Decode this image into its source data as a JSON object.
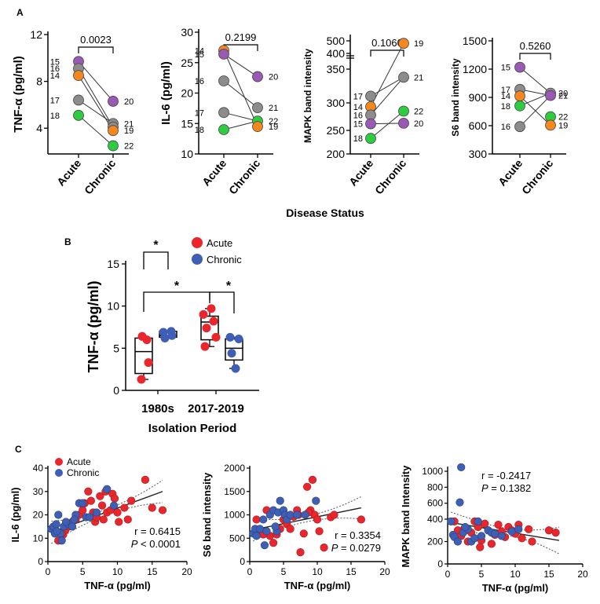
{
  "panel_labels": [
    "A",
    "B",
    "C"
  ],
  "shared_labels": {
    "disease_status": "Disease Status",
    "isolation_period": "Isolation Period"
  },
  "chart_data": [
    {
      "panel": "A",
      "type": "scatter",
      "ylabel": "TNF-α (pg/ml)",
      "categories": [
        "Acute",
        "Chronic"
      ],
      "yticks": [
        4,
        8,
        12
      ],
      "ylim": [
        1.8,
        12
      ],
      "pvalue": "0.0023",
      "acute": [
        {
          "id": "15",
          "value": 9.7,
          "color": "#9b59b6"
        },
        {
          "id": "16",
          "value": 9.1,
          "color": "#8c8c8c"
        },
        {
          "id": "14",
          "value": 8.5,
          "color": "#f5871f"
        },
        {
          "id": "17",
          "value": 6.4,
          "color": "#8c8c8c"
        },
        {
          "id": "18",
          "value": 5.1,
          "color": "#2ecc40"
        }
      ],
      "chronic": [
        {
          "id": "20",
          "value": 6.3,
          "color": "#9b59b6"
        },
        {
          "id": "21",
          "value": 4.4,
          "color": "#8c8c8c"
        },
        {
          "id": "",
          "value": 4.1,
          "color": "#8c8c8c"
        },
        {
          "id": "19",
          "value": 3.8,
          "color": "#f5871f"
        },
        {
          "id": "22",
          "value": 2.5,
          "color": "#2ecc40"
        }
      ],
      "links": [
        [
          0,
          0
        ],
        [
          1,
          2
        ],
        [
          2,
          3
        ],
        [
          3,
          1
        ],
        [
          4,
          4
        ]
      ]
    },
    {
      "panel": "A",
      "type": "scatter",
      "ylabel": "IL-6 (pg/ml)",
      "categories": [
        "Acute",
        "Chronic"
      ],
      "yticks": [
        10,
        15,
        20,
        25,
        30
      ],
      "ylim": [
        10,
        30
      ],
      "pvalue": "0.2199",
      "acute": [
        {
          "id": "14",
          "value": 27.0,
          "color": "#f5871f"
        },
        {
          "id": "15",
          "value": 26.4,
          "color": "#9b59b6"
        },
        {
          "id": "16",
          "value": 22.0,
          "color": "#8c8c8c"
        },
        {
          "id": "17",
          "value": 16.8,
          "color": "#8c8c8c"
        },
        {
          "id": "18",
          "value": 14.0,
          "color": "#2ecc40"
        }
      ],
      "chronic": [
        {
          "id": "20",
          "value": 22.7,
          "color": "#9b59b6"
        },
        {
          "id": "21",
          "value": 17.6,
          "color": "#8c8c8c"
        },
        {
          "id": "22",
          "value": 15.4,
          "color": "#2ecc40"
        },
        {
          "id": "19",
          "value": 14.5,
          "color": "#f5871f"
        }
      ],
      "links": [
        [
          0,
          3
        ],
        [
          1,
          0
        ],
        [
          2,
          1
        ],
        [
          3,
          2
        ],
        [
          4,
          2
        ]
      ]
    },
    {
      "panel": "A",
      "type": "scatter",
      "ylabel": "MAPK band intensity",
      "categories": [
        "Acute",
        "Chronic"
      ],
      "ytick_labels": [
        "200",
        "250",
        "300",
        "350",
        "400",
        "500"
      ],
      "pvalue": "0.1060",
      "acute": [
        {
          "id": "17",
          "value": 310,
          "color": "#8c8c8c"
        },
        {
          "id": "14",
          "value": 293,
          "color": "#f5871f"
        },
        {
          "id": "16",
          "value": 278,
          "color": "#8c8c8c"
        },
        {
          "id": "15",
          "value": 262,
          "color": "#9b59b6"
        },
        {
          "id": "18",
          "value": 233,
          "color": "#2ecc40"
        }
      ],
      "chronic": [
        {
          "id": "19",
          "value": 480,
          "color": "#f5871f"
        },
        {
          "id": "21",
          "value": 338,
          "color": "#8c8c8c"
        },
        {
          "id": "22",
          "value": 285,
          "color": "#2ecc40"
        },
        {
          "id": "20",
          "value": 263,
          "color": "#9b59b6"
        }
      ],
      "links": [
        [
          0,
          1
        ],
        [
          1,
          0
        ],
        [
          2,
          1
        ],
        [
          3,
          3
        ],
        [
          4,
          2
        ]
      ]
    },
    {
      "panel": "A",
      "type": "scatter",
      "ylabel": "S6 band intensity",
      "categories": [
        "Acute",
        "Chronic"
      ],
      "yticks": [
        300,
        600,
        900,
        1200,
        1500
      ],
      "ylim": [
        300,
        1500
      ],
      "pvalue": "0.5260",
      "acute": [
        {
          "id": "15",
          "value": 1220,
          "color": "#9b59b6"
        },
        {
          "id": "17",
          "value": 985,
          "color": "#8c8c8c"
        },
        {
          "id": "14",
          "value": 915,
          "color": "#f5871f"
        },
        {
          "id": "18",
          "value": 810,
          "color": "#2ecc40"
        },
        {
          "id": "16",
          "value": 590,
          "color": "#8c8c8c"
        }
      ],
      "chronic": [
        {
          "id": "20",
          "value": 945,
          "color": "#8c8c8c"
        },
        {
          "id": "21",
          "value": 920,
          "color": "#9b59b6"
        },
        {
          "id": "22",
          "value": 695,
          "color": "#2ecc40"
        },
        {
          "id": "19",
          "value": 605,
          "color": "#f5871f"
        }
      ],
      "links": [
        [
          0,
          0
        ],
        [
          1,
          1
        ],
        [
          2,
          3
        ],
        [
          3,
          0
        ],
        [
          4,
          1
        ]
      ]
    },
    {
      "panel": "B",
      "type": "box",
      "ylabel": "TNF-α (pg/ml)",
      "xlabel": "Isolation Period",
      "categories": [
        "1980s",
        "2017-2019"
      ],
      "yticks": [
        0,
        5,
        10,
        15
      ],
      "ylim": [
        0,
        15
      ],
      "legend": [
        {
          "name": "Acute",
          "color": "#e8262c"
        },
        {
          "name": "Chronic",
          "color": "#3f5fb5"
        }
      ],
      "significance": "*",
      "boxes": [
        {
          "group": "1980s",
          "series": "Acute",
          "min": 1.3,
          "q1": 2.0,
          "median": 4.6,
          "q3": 6.2,
          "max": 6.4,
          "points": [
            1.3,
            3.3,
            6.0,
            6.4
          ]
        },
        {
          "group": "1980s",
          "series": "Chronic",
          "min": 6.2,
          "q1": 6.3,
          "median": 6.5,
          "q3": 7.0,
          "max": 7.0,
          "points": [
            6.2,
            6.5,
            6.9,
            7.0
          ]
        },
        {
          "group": "2017-2019",
          "series": "Acute",
          "min": 5.2,
          "q1": 6.0,
          "median": 8.1,
          "q3": 8.8,
          "max": 9.7,
          "points": [
            5.2,
            6.3,
            7.4,
            8.2,
            9.0,
            9.7
          ]
        },
        {
          "group": "2017-2019",
          "series": "Chronic",
          "min": 2.6,
          "q1": 3.6,
          "median": 5.0,
          "q3": 6.1,
          "max": 6.3,
          "points": [
            2.6,
            4.4,
            6.1,
            6.3
          ]
        }
      ]
    },
    {
      "panel": "C",
      "type": "scatter",
      "xlabel": "TNF-α (pg/ml)",
      "ylabel": "IL-6 (pg/ml)",
      "xticks": [
        0,
        5,
        10,
        15,
        20
      ],
      "xlim": [
        0,
        20
      ],
      "yticks": [
        0,
        10,
        20,
        30,
        40
      ],
      "ylim": [
        0,
        40
      ],
      "legend": [
        {
          "name": "Acute",
          "color": "#e8262c"
        },
        {
          "name": "Chronic",
          "color": "#3f5fb5"
        }
      ],
      "r_text": "r = 0.6415",
      "p_label": "P",
      "p_text": " < 0.0001",
      "fit": {
        "x": [
          0.5,
          16.5
        ],
        "y": [
          12.5,
          30.0
        ]
      },
      "acute": [
        [
          2.2,
          11.5
        ],
        [
          2.5,
          13.5
        ],
        [
          3,
          15
        ],
        [
          3.5,
          17
        ],
        [
          4,
          18
        ],
        [
          4.5,
          20
        ],
        [
          5,
          22
        ],
        [
          5.3,
          25
        ],
        [
          5.8,
          30
        ],
        [
          6.2,
          26
        ],
        [
          6.5,
          21
        ],
        [
          6.8,
          17
        ],
        [
          7,
          19
        ],
        [
          7.5,
          28
        ],
        [
          7.8,
          24
        ],
        [
          8,
          18
        ],
        [
          8.3,
          30
        ],
        [
          8.5,
          21
        ],
        [
          9,
          22
        ],
        [
          9.3,
          29
        ],
        [
          9.6,
          27
        ],
        [
          10,
          21
        ],
        [
          10.2,
          17
        ],
        [
          11,
          23
        ],
        [
          11.5,
          18
        ],
        [
          12,
          26
        ],
        [
          14,
          35
        ],
        [
          15,
          23
        ],
        [
          16.5,
          22
        ],
        [
          1.5,
          9
        ],
        [
          2,
          12
        ],
        [
          1,
          14
        ]
      ],
      "chronic": [
        [
          0.5,
          14
        ],
        [
          0.8,
          15
        ],
        [
          1,
          12
        ],
        [
          1.2,
          16
        ],
        [
          1.5,
          20
        ],
        [
          1.8,
          12
        ],
        [
          2,
          9
        ],
        [
          2.3,
          15
        ],
        [
          3,
          16
        ],
        [
          3.5,
          15
        ],
        [
          4,
          20
        ],
        [
          4.5,
          25
        ],
        [
          5,
          25
        ],
        [
          5.5,
          19
        ],
        [
          6,
          19
        ],
        [
          7,
          21
        ],
        [
          8.5,
          31
        ],
        [
          9.5,
          24
        ],
        [
          1.3,
          13
        ],
        [
          2.6,
          17
        ],
        [
          3.8,
          18
        ]
      ]
    },
    {
      "panel": "C",
      "type": "scatter",
      "xlabel": "TNF-α (pg/ml)",
      "ylabel": "S6 band intensity",
      "xticks": [
        0,
        5,
        10,
        15,
        20
      ],
      "xlim": [
        0,
        20
      ],
      "yticks": [
        0,
        500,
        1000,
        1500,
        2000
      ],
      "ylim": [
        0,
        2000
      ],
      "r_text": "r = 0.3354",
      "p_label": "P",
      "p_text": " = 0.0279",
      "fit": {
        "x": [
          0.5,
          16.5
        ],
        "y": [
          680,
          1150
        ]
      },
      "acute": [
        [
          1,
          900
        ],
        [
          1.5,
          650
        ],
        [
          2,
          580
        ],
        [
          2.5,
          1100
        ],
        [
          3,
          550
        ],
        [
          3.5,
          400
        ],
        [
          4,
          580
        ],
        [
          4.5,
          700
        ],
        [
          5,
          900
        ],
        [
          5.5,
          800
        ],
        [
          6,
          700
        ],
        [
          6.5,
          960
        ],
        [
          7,
          1100
        ],
        [
          7.2,
          1000
        ],
        [
          8,
          600
        ],
        [
          8.5,
          1600
        ],
        [
          9,
          1100
        ],
        [
          9.3,
          1750
        ],
        [
          9.6,
          1000
        ],
        [
          10,
          900
        ],
        [
          10.3,
          650
        ],
        [
          11,
          300
        ],
        [
          12,
          950
        ],
        [
          12.5,
          1000
        ],
        [
          16.5,
          900
        ],
        [
          7.5,
          200
        ],
        [
          8.7,
          1050
        ]
      ],
      "chronic": [
        [
          0.5,
          600
        ],
        [
          0.8,
          700
        ],
        [
          1,
          550
        ],
        [
          1.5,
          700
        ],
        [
          2,
          900
        ],
        [
          2.5,
          650
        ],
        [
          3,
          1000
        ],
        [
          3.5,
          1100
        ],
        [
          4,
          650
        ],
        [
          4.2,
          1050
        ],
        [
          4.5,
          1300
        ],
        [
          5,
          1100
        ],
        [
          5.2,
          1000
        ],
        [
          5.5,
          900
        ],
        [
          6,
          1000
        ],
        [
          7,
          1000
        ],
        [
          8.2,
          1000
        ],
        [
          9.8,
          1300
        ],
        [
          2.2,
          350
        ],
        [
          3.8,
          750
        ]
      ]
    },
    {
      "panel": "C",
      "type": "scatter",
      "xlabel": "TNF-α (pg/ml)",
      "ylabel": "MAPK band Intensity",
      "xticks": [
        0,
        5,
        10,
        15,
        20
      ],
      "xlim": [
        0,
        20
      ],
      "ytick_labels": [
        "0",
        "200",
        "400",
        "600",
        "800",
        "1000"
      ],
      "r_text": "r = -0.2417",
      "p_label": "P",
      "p_text": " = 0.1382",
      "fit": {
        "x": [
          0.5,
          16.5
        ],
        "y": [
          370,
          210
        ]
      },
      "acute": [
        [
          1,
          380
        ],
        [
          1.5,
          300
        ],
        [
          2,
          250
        ],
        [
          2.5,
          320
        ],
        [
          3,
          200
        ],
        [
          3.5,
          280
        ],
        [
          4,
          380
        ],
        [
          4.5,
          330
        ],
        [
          5,
          210
        ],
        [
          5.5,
          360
        ],
        [
          6,
          300
        ],
        [
          6.5,
          180
        ],
        [
          7,
          260
        ],
        [
          7.5,
          350
        ],
        [
          8,
          290
        ],
        [
          8.5,
          240
        ],
        [
          9,
          330
        ],
        [
          9.5,
          300
        ],
        [
          10,
          270
        ],
        [
          10.5,
          350
        ],
        [
          11,
          230
        ],
        [
          12,
          310
        ],
        [
          12.5,
          200
        ],
        [
          15,
          300
        ],
        [
          16,
          280
        ],
        [
          4.8,
          150
        ]
      ],
      "chronic": [
        [
          0.5,
          380
        ],
        [
          0.8,
          260
        ],
        [
          1,
          240
        ],
        [
          1.5,
          200
        ],
        [
          1.8,
          610
        ],
        [
          2,
          1050
        ],
        [
          2.3,
          280
        ],
        [
          3,
          310
        ],
        [
          3.5,
          200
        ],
        [
          4,
          230
        ],
        [
          4.5,
          380
        ],
        [
          5,
          250
        ],
        [
          6,
          300
        ],
        [
          6.5,
          280
        ],
        [
          7,
          270
        ],
        [
          8,
          250
        ],
        [
          9.5,
          290
        ],
        [
          10.5,
          310
        ],
        [
          2.6,
          330
        ]
      ]
    }
  ]
}
